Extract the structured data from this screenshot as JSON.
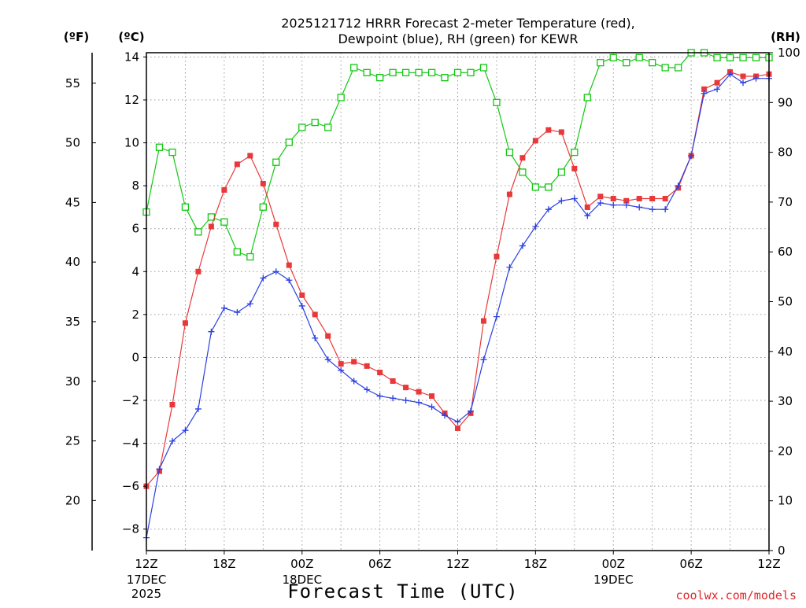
{
  "title_line1": "2025121712 HRRR Forecast 2-meter Temperature (red),",
  "title_line2": "Dewpoint (blue), RH (green) for KEWR",
  "unit_f": "(ºF)",
  "unit_c": "(ºC)",
  "unit_rh": "(RH)",
  "xlabel": "Forecast Time (UTC)",
  "credit": "coolwx.com/models",
  "colors": {
    "temp": "#e8383a",
    "dewpoint": "#2a3fe0",
    "rh": "#12c812"
  },
  "chart_data": {
    "type": "line",
    "x_unit": "hours from 2025-12-17 12Z",
    "xlim": [
      0,
      48
    ],
    "x_ticks": [
      {
        "x": 0,
        "label": "12Z",
        "sub": [
          "17DEC",
          "2025"
        ]
      },
      {
        "x": 6,
        "label": "18Z",
        "sub": []
      },
      {
        "x": 12,
        "label": "00Z",
        "sub": [
          "18DEC"
        ]
      },
      {
        "x": 18,
        "label": "06Z",
        "sub": []
      },
      {
        "x": 24,
        "label": "12Z",
        "sub": []
      },
      {
        "x": 30,
        "label": "18Z",
        "sub": []
      },
      {
        "x": 36,
        "label": "00Z",
        "sub": [
          "19DEC"
        ]
      },
      {
        "x": 42,
        "label": "06Z",
        "sub": []
      },
      {
        "x": 48,
        "label": "12Z",
        "sub": []
      }
    ],
    "ylim_c": [
      -9,
      14.2
    ],
    "yticks_c": [
      "14",
      "12",
      "10",
      "8",
      "6",
      "4",
      "2",
      "0",
      "−2",
      "−4",
      "−6",
      "−8"
    ],
    "yticks_c_values": [
      14,
      12,
      10,
      8,
      6,
      4,
      2,
      0,
      -2,
      -4,
      -6,
      -8
    ],
    "yticks_f": [
      "55",
      "50",
      "45",
      "40",
      "35",
      "30",
      "25",
      "20"
    ],
    "yticks_f_values": [
      55,
      50,
      45,
      40,
      35,
      30,
      25,
      20
    ],
    "ylim_rh": [
      0,
      100
    ],
    "yticks_rh": [
      "100",
      "90",
      "80",
      "70",
      "60",
      "50",
      "40",
      "30",
      "20",
      "10",
      "0"
    ],
    "yticks_rh_values": [
      100,
      90,
      80,
      70,
      60,
      50,
      40,
      30,
      20,
      10,
      0
    ],
    "grid": true,
    "series": [
      {
        "name": "Temperature",
        "axis": "c",
        "marker": "filled-square",
        "values": [
          -6.0,
          -5.3,
          -2.2,
          1.6,
          4.0,
          6.1,
          7.8,
          9.0,
          9.4,
          8.1,
          6.2,
          4.3,
          2.9,
          2.0,
          1.0,
          -0.3,
          -0.2,
          -0.4,
          -0.7,
          -1.1,
          -1.4,
          -1.6,
          -1.8,
          -2.6,
          -3.3,
          -2.6,
          1.7,
          4.7,
          7.6,
          9.3,
          10.1,
          10.6,
          10.5,
          8.8,
          7.0,
          7.5,
          7.4,
          7.3,
          7.4,
          7.4,
          7.4,
          7.9,
          9.4,
          12.5,
          12.8,
          13.3,
          13.1,
          13.1,
          13.2
        ]
      },
      {
        "name": "Dewpoint",
        "axis": "c",
        "marker": "plus",
        "values": [
          -8.4,
          -5.2,
          -3.9,
          -3.4,
          -2.4,
          1.2,
          2.3,
          2.1,
          2.5,
          3.7,
          4.0,
          3.6,
          2.4,
          0.9,
          -0.1,
          -0.6,
          -1.1,
          -1.5,
          -1.8,
          -1.9,
          -2.0,
          -2.1,
          -2.3,
          -2.7,
          -3.0,
          -2.5,
          -0.1,
          1.9,
          4.2,
          5.2,
          6.1,
          6.9,
          7.3,
          7.4,
          6.6,
          7.2,
          7.1,
          7.1,
          7.0,
          6.9,
          6.9,
          8.0,
          9.4,
          12.3,
          12.5,
          13.2,
          12.8,
          13.0,
          13.0
        ]
      },
      {
        "name": "RH",
        "axis": "rh",
        "marker": "open-square",
        "values": [
          68,
          81,
          80,
          69,
          64,
          67,
          66,
          60,
          59,
          69,
          78,
          82,
          85,
          86,
          85,
          91,
          97,
          96,
          95,
          96,
          96,
          96,
          96,
          95,
          96,
          96,
          97,
          90,
          80,
          76,
          73,
          73,
          76,
          80,
          91,
          98,
          99,
          98,
          99,
          98,
          97,
          97,
          100,
          100,
          99,
          99,
          99,
          99,
          99
        ]
      }
    ]
  }
}
